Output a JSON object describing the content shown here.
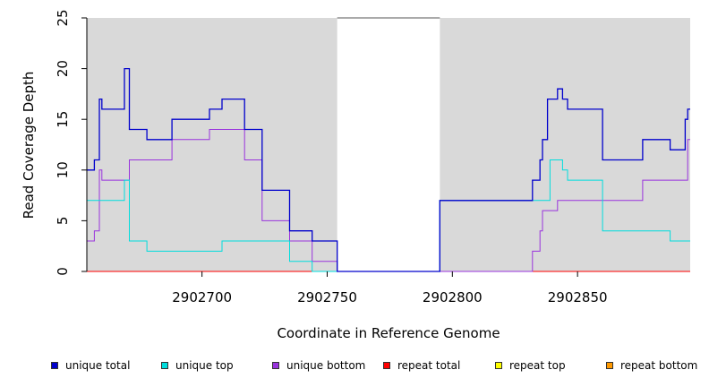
{
  "chart_data": {
    "type": "line",
    "title": "",
    "xlabel": "Coordinate in Reference Genome",
    "ylabel": "Read Coverage Depth",
    "xlim": [
      2902654,
      2902895
    ],
    "ylim": [
      0,
      25
    ],
    "x_ticks": [
      2902700,
      2902750,
      2902800,
      2902850
    ],
    "x_tick_labels": [
      "2902700",
      "2902750",
      "2902800",
      "2902850"
    ],
    "y_ticks": [
      0,
      5,
      10,
      15,
      20,
      25
    ],
    "y_tick_labels": [
      "0",
      "5",
      "10",
      "15",
      "20",
      "25"
    ],
    "grid": false,
    "background_color": "#d9d9d9",
    "unshaded_x_range": [
      2902754,
      2902795
    ],
    "step_style": "step",
    "series": [
      {
        "name": "unique total",
        "color": "#0000cc",
        "x": [
          2902654,
          2902657,
          2902659,
          2902660,
          2902669,
          2902671,
          2902678,
          2902688,
          2902703,
          2902708,
          2902717,
          2902724,
          2902735,
          2902744,
          2902754,
          2902795,
          2902832,
          2902835,
          2902836,
          2902838,
          2902842,
          2902844,
          2902846,
          2902860,
          2902876,
          2902887,
          2902893,
          2902894
        ],
        "values": [
          10,
          11,
          17,
          16,
          20,
          14,
          13,
          15,
          16,
          17,
          14,
          8,
          4,
          3,
          0,
          7,
          9,
          11,
          13,
          17,
          18,
          17,
          16,
          11,
          13,
          12,
          15,
          16
        ]
      },
      {
        "name": "unique top",
        "color": "#00dddd",
        "x": [
          2902654,
          2902669,
          2902671,
          2902678,
          2902708,
          2902735,
          2902744,
          2902754,
          2902795,
          2902839,
          2902844,
          2902846,
          2902860,
          2902887
        ],
        "values": [
          7,
          9,
          3,
          2,
          3,
          1,
          0,
          0,
          7,
          11,
          10,
          9,
          4,
          3
        ]
      },
      {
        "name": "unique bottom",
        "color": "#9933dd",
        "x": [
          2902654,
          2902657,
          2902659,
          2902660,
          2902671,
          2902688,
          2902703,
          2902717,
          2902724,
          2902735,
          2902744,
          2902754,
          2902832,
          2902835,
          2902836,
          2902842,
          2902876,
          2902894
        ],
        "values": [
          3,
          4,
          10,
          9,
          11,
          13,
          14,
          11,
          5,
          3,
          1,
          0,
          2,
          4,
          6,
          7,
          9,
          13
        ]
      },
      {
        "name": "repeat total",
        "color": "#ff0000",
        "x": [
          2902654
        ],
        "values": [
          0
        ]
      },
      {
        "name": "repeat top",
        "color": "#ffff00",
        "x": [
          2902654
        ],
        "values": [
          0
        ]
      },
      {
        "name": "repeat bottom",
        "color": "#ff9900",
        "x": [
          2902654
        ],
        "values": [
          0
        ]
      }
    ],
    "legend_position": "bottom"
  }
}
